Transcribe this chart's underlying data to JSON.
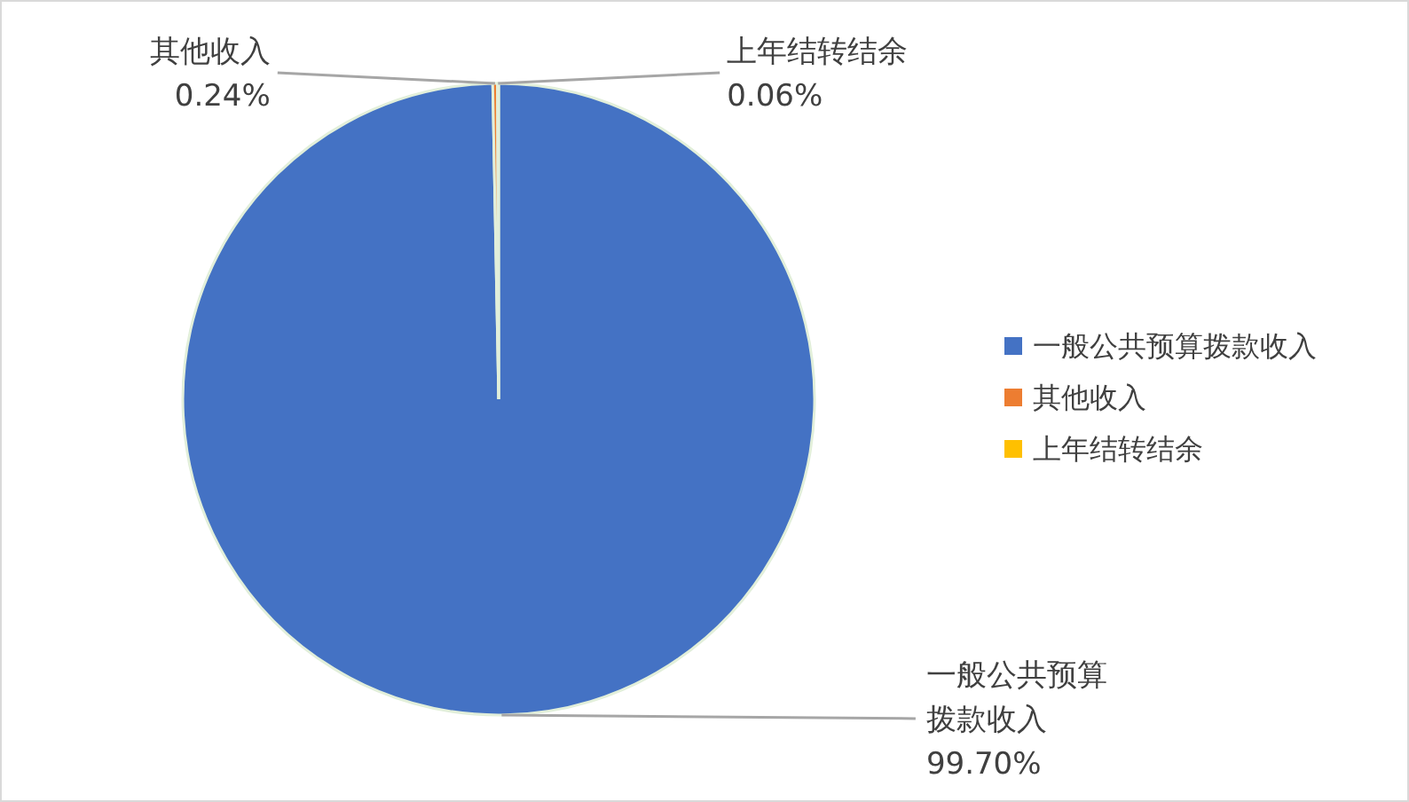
{
  "chart_data": {
    "type": "pie",
    "categories": [
      "一般公共预算拨款收入",
      "其他收入",
      "上年结转结余"
    ],
    "values": [
      99.7,
      0.24,
      0.06
    ],
    "colors": [
      "#4472c4",
      "#ed7d31",
      "#ffc000"
    ],
    "value_labels": [
      "99.70%",
      "0.24%",
      "0.06%"
    ],
    "legend": "right"
  }
}
